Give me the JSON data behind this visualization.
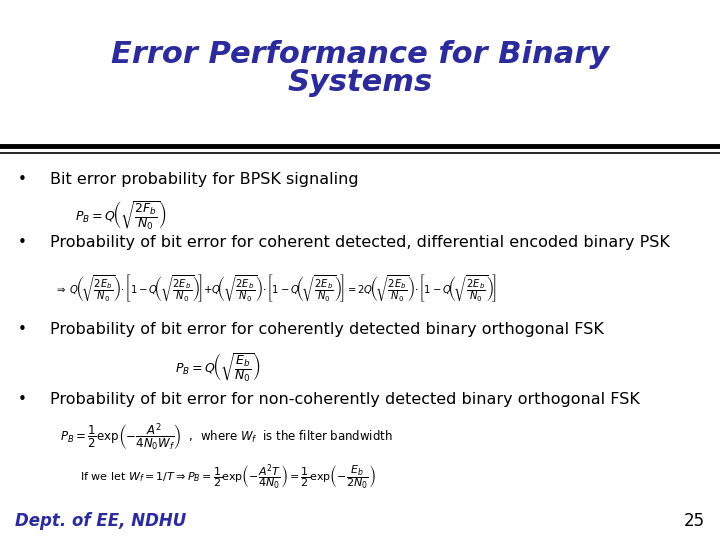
{
  "title_line1": "Error Performance for Binary",
  "title_line2": "Systems",
  "title_color": "#2B2B9B",
  "title_fontsize": 22,
  "title_style": "italic",
  "title_weight": "bold",
  "bg_color": "#FFFFFF",
  "bullet_color": "#000000",
  "bullet_fontsize": 11.5,
  "dept_text": "Dept. of EE, NDHU",
  "dept_color": "#2B2B9B",
  "page_number": "25",
  "separator_color": "#000000",
  "bullets": [
    "Bit error probability for BPSK signaling",
    "Probability of bit error for coherent detected, differential encoded binary PSK",
    "Probability of bit error for coherently detected binary orthogonal FSK",
    "Probability of bit error for non-coherently detected binary orthogonal FSK"
  ]
}
